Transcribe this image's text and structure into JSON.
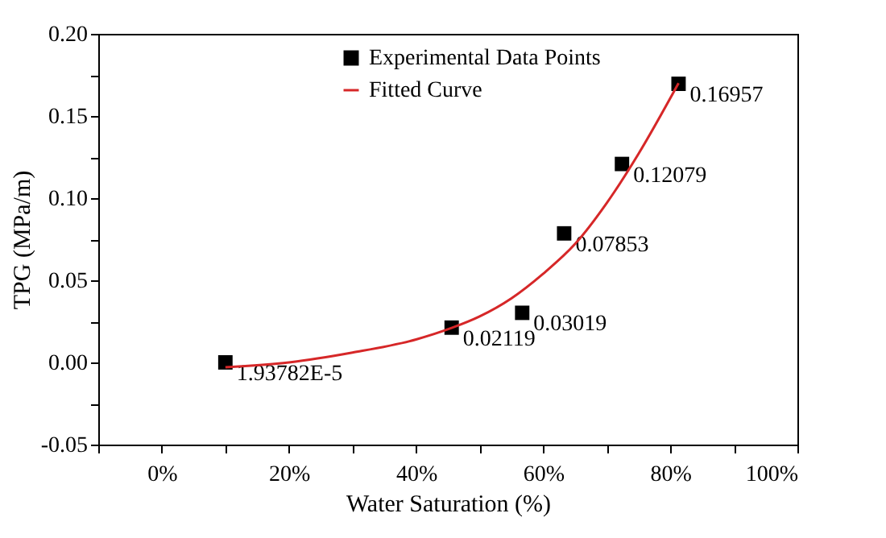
{
  "chart_data": {
    "type": "scatter",
    "xlabel": "Water Saturation (%)",
    "ylabel": "TPG (MPa/m)",
    "xlim": [
      -10,
      100
    ],
    "ylim": [
      -0.05,
      0.2
    ],
    "xticks": [
      {
        "value": -10,
        "label": null
      },
      {
        "value": 0,
        "label": "0%"
      },
      {
        "value": 10,
        "label": null
      },
      {
        "value": 20,
        "label": "20%"
      },
      {
        "value": 30,
        "label": null
      },
      {
        "value": 40,
        "label": "40%"
      },
      {
        "value": 50,
        "label": null
      },
      {
        "value": 60,
        "label": "60%"
      },
      {
        "value": 70,
        "label": null
      },
      {
        "value": 80,
        "label": "80%"
      },
      {
        "value": 90,
        "label": null
      },
      {
        "value": 100,
        "label": "100%"
      }
    ],
    "yticks": [
      {
        "value": -0.05,
        "label": "-0.05"
      },
      {
        "value": -0.025,
        "label": null
      },
      {
        "value": 0,
        "label": "0.00"
      },
      {
        "value": 0.025,
        "label": null
      },
      {
        "value": 0.05,
        "label": "0.05"
      },
      {
        "value": 0.075,
        "label": null
      },
      {
        "value": 0.1,
        "label": "0.10"
      },
      {
        "value": 0.125,
        "label": null
      },
      {
        "value": 0.15,
        "label": "0.15"
      },
      {
        "value": 0.175,
        "label": null
      },
      {
        "value": 0.2,
        "label": "0.20"
      }
    ],
    "grid": false,
    "legend": "top",
    "series": [
      {
        "name": "Experimental Data Points",
        "marker": "square",
        "color": "#000000",
        "x": [
          10,
          45.6,
          56.7,
          63.3,
          72.4,
          81.3
        ],
        "values": [
          1.93782e-05,
          0.02119,
          0.03019,
          0.07853,
          0.12079,
          0.16957
        ],
        "value_labels": [
          "1.93782E-5",
          "0.02119",
          "0.03019",
          "0.07853",
          "0.12079",
          "0.16957"
        ]
      },
      {
        "name": "Fitted Curve",
        "type": "line",
        "marker": "none",
        "line_style": "solid",
        "color": "#d62728",
        "x": [
          10,
          20,
          30,
          40,
          45.6,
          50,
          55,
          60,
          65,
          70,
          75,
          81.3
        ],
        "values": [
          -0.003,
          0.0,
          0.006,
          0.014,
          0.021,
          0.028,
          0.039,
          0.054,
          0.072,
          0.097,
          0.127,
          0.17
        ]
      }
    ]
  }
}
